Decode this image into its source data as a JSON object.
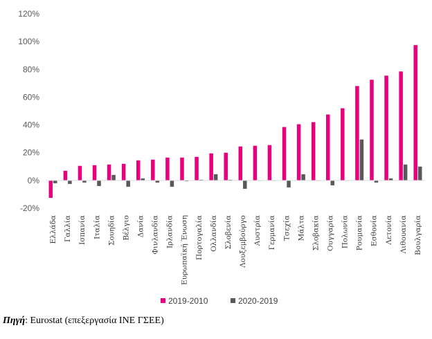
{
  "chart_data": {
    "type": "bar",
    "categories": [
      "Ελλάδα",
      "Γαλλία",
      "Ισπανία",
      "Ιταλία",
      "Σουηδία",
      "Βέλγιο",
      "Δανία",
      "Φινλανδία",
      "Ιρλανδία",
      "Ευρωπαϊκή Ένωση",
      "Πορτογαλία",
      "Ολλανδία",
      "Σλοβενία",
      "Λουξεμβούργο",
      "Αυστρία",
      "Γερμανία",
      "Τσεχία",
      "Μάλτα",
      "Σλοβακία",
      "Ουγγαρία",
      "Πολωνία",
      "Ρουμανία",
      "Εσθονία",
      "Λετονία",
      "Λιθουανία",
      "Βουλγαρία"
    ],
    "series": [
      {
        "name": "2019-2010",
        "color": "#E6007E",
        "values": [
          -12.5,
          7,
          10.5,
          11,
          11.5,
          12,
          14.5,
          15,
          16.5,
          16.5,
          17,
          19.5,
          20,
          24.5,
          25,
          25.5,
          38.5,
          40.5,
          42,
          47.5,
          52,
          68,
          72.5,
          75.5,
          78.5,
          97.5
        ]
      },
      {
        "name": "2020-2019",
        "color": "#595959",
        "values": [
          -2,
          -2.5,
          -1.5,
          -4,
          4,
          -4.5,
          1.5,
          -1.5,
          -4.5,
          -0.5,
          0.5,
          4.5,
          0.5,
          -6,
          0,
          0,
          -5,
          4.5,
          0,
          -3.5,
          0,
          29.5,
          -1.5,
          1.5,
          11.5,
          10
        ]
      }
    ],
    "yticks": [
      "-20%",
      "0%",
      "20%",
      "40%",
      "60%",
      "80%",
      "100%",
      "120%"
    ],
    "ylim": [
      -20,
      120
    ],
    "grid": false,
    "legend": "bottom"
  },
  "source": {
    "label": "Πηγή",
    "text": "Eurostat (επεξεργασία ΙΝΕ ΓΣΕΕ)"
  }
}
